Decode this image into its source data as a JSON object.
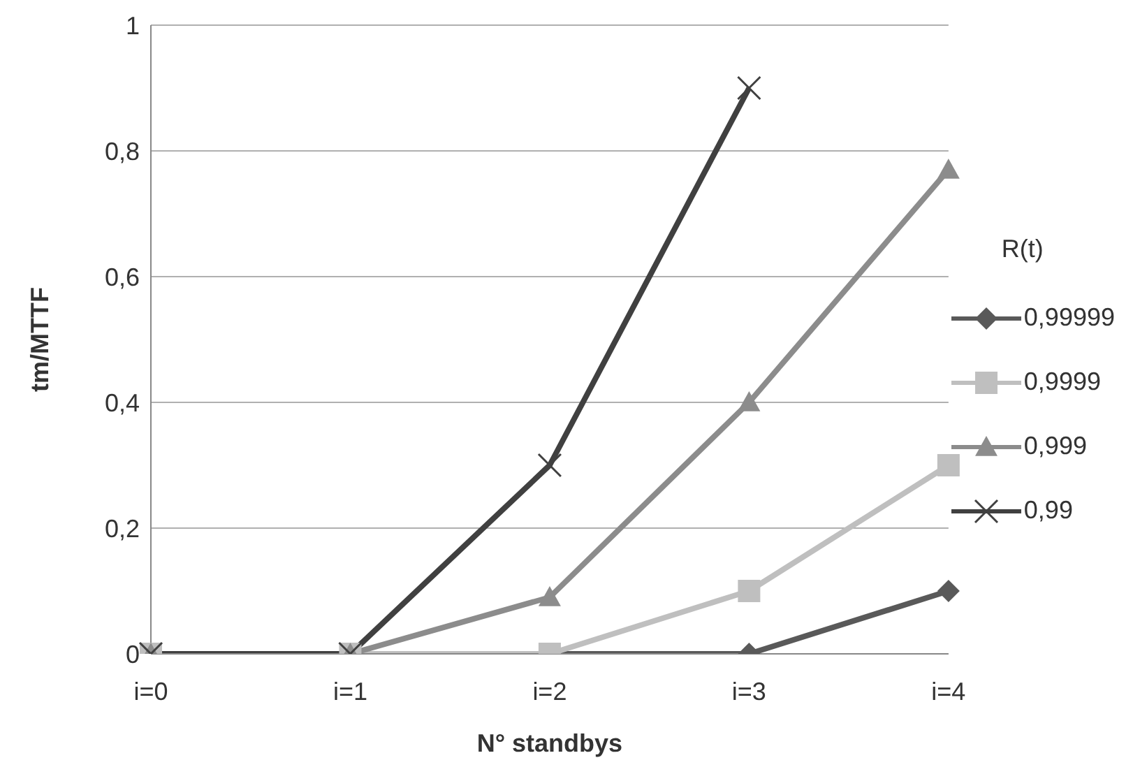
{
  "chart_data": {
    "type": "line",
    "xlabel": "N° standbys",
    "ylabel": "tm/MTTF",
    "legend_title": "R(t)",
    "categories": [
      "i=0",
      "i=1",
      "i=2",
      "i=3",
      "i=4"
    ],
    "series": [
      {
        "name": "0,99999",
        "color": "#595959",
        "marker": "diamond",
        "values": [
          0,
          0,
          0,
          0,
          0.1
        ]
      },
      {
        "name": "0,9999",
        "color": "#bfbfbf",
        "marker": "square",
        "values": [
          0,
          0,
          0,
          0.1,
          0.3
        ]
      },
      {
        "name": "0,999",
        "color": "#8c8c8c",
        "marker": "triangle",
        "values": [
          0,
          0,
          0.09,
          0.4,
          0.77
        ]
      },
      {
        "name": "0,99",
        "color": "#404040",
        "marker": "cross",
        "values": [
          0,
          0,
          0.3,
          0.9,
          null
        ]
      }
    ],
    "ylim": [
      0,
      1
    ],
    "yticks": [
      0,
      {
        "value": 0.2,
        "label": "0,2"
      },
      {
        "value": 0.4,
        "label": "0,4"
      },
      {
        "value": 0.6,
        "label": "0,6"
      },
      {
        "value": 0.8,
        "label": "0,8"
      },
      1
    ],
    "grid": "y",
    "legend": "right"
  }
}
